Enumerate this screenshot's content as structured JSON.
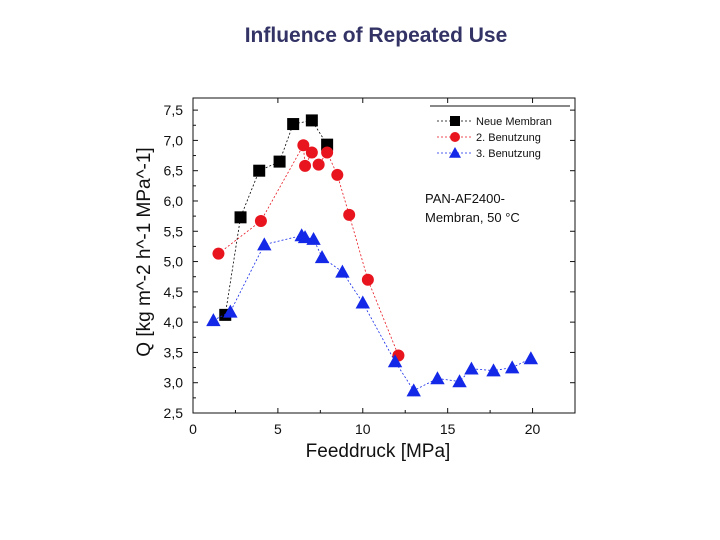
{
  "chart_data": {
    "type": "scatter",
    "title": "Influence of Repeated Use",
    "xlabel": "Feeddruck [MPa]",
    "ylabel": "Q [kg m^-2 h^-1 MPa^-1]",
    "xlim": [
      0,
      22.5
    ],
    "ylim": [
      2.5,
      7.7
    ],
    "xticks": [
      "0",
      "5",
      "10",
      "15",
      "20"
    ],
    "yticks": [
      "2,5",
      "3,0",
      "3,5",
      "4,0",
      "4,5",
      "5,0",
      "5,5",
      "6,0",
      "6,5",
      "7,0",
      "7,5"
    ],
    "annotation": [
      "PAN-AF2400-",
      "Membran, 50 °C"
    ],
    "legend_position": "top-right",
    "series": [
      {
        "name": "Neue Membran",
        "marker": "square",
        "color": "#000000",
        "x": [
          1.9,
          2.8,
          3.9,
          5.1,
          5.9,
          7.0,
          7.9
        ],
        "y": [
          4.12,
          5.73,
          6.5,
          6.65,
          7.27,
          7.33,
          6.93
        ]
      },
      {
        "name": "2. Benutzung",
        "marker": "circle",
        "color": "#e8141e",
        "x": [
          1.5,
          4.0,
          6.5,
          6.6,
          7.0,
          7.4,
          7.9,
          8.5,
          9.2,
          10.3,
          12.1
        ],
        "y": [
          5.13,
          5.67,
          6.92,
          6.58,
          6.8,
          6.6,
          6.8,
          6.43,
          5.77,
          4.7,
          3.45
        ]
      },
      {
        "name": "3. Benutzung",
        "marker": "triangle",
        "color": "#1428e8",
        "x": [
          1.2,
          2.2,
          4.2,
          6.4,
          6.6,
          7.1,
          7.6,
          8.8,
          10.0,
          11.9,
          13.0,
          14.4,
          15.7,
          16.4,
          17.7,
          18.8,
          19.9
        ],
        "y": [
          4.03,
          4.17,
          5.28,
          5.43,
          5.4,
          5.37,
          5.07,
          4.83,
          4.32,
          3.35,
          2.87,
          3.07,
          3.02,
          3.23,
          3.2,
          3.25,
          3.4
        ]
      }
    ]
  }
}
